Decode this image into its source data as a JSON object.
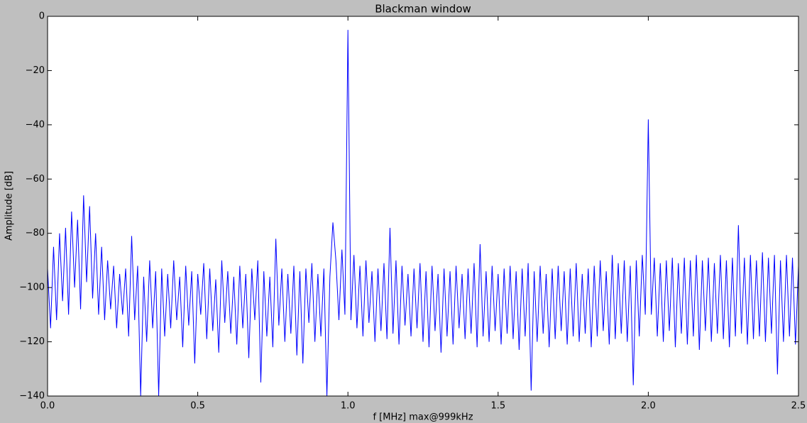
{
  "chart_data": {
    "type": "line",
    "title": "Blackman window",
    "x_label": "f [MHz] max@999kHz",
    "y_label": "Amplitude [dB]",
    "color": "#0000ff",
    "xlim": [
      0,
      2.5
    ],
    "ylim": [
      -140,
      0
    ],
    "xticks": [
      {
        "value": 0,
        "label": "0.0"
      },
      0.5,
      {
        "value": 1,
        "label": "1.0"
      },
      1.5,
      {
        "value": 2,
        "label": "2.0"
      },
      2.5
    ],
    "yticks": [
      {
        "value": 0,
        "label": "0"
      },
      {
        "value": -20,
        "label": "−20"
      },
      {
        "value": -40,
        "label": "−40"
      },
      {
        "value": -60,
        "label": "−60"
      },
      {
        "value": -80,
        "label": "−80"
      },
      {
        "value": -100,
        "label": "−100"
      },
      {
        "value": -120,
        "label": "−120"
      },
      {
        "value": -140,
        "label": "−140"
      }
    ],
    "x": [
      0,
      0.01,
      0.02,
      0.03,
      0.04,
      0.05,
      0.06,
      0.07,
      0.08,
      0.09,
      0.1,
      0.11,
      0.12,
      0.13,
      0.14,
      0.15,
      0.16,
      0.17,
      0.18,
      0.19,
      0.2,
      0.21,
      0.22,
      0.23,
      0.24,
      0.25,
      0.26,
      0.27,
      0.28,
      0.29,
      0.3,
      0.31,
      0.32,
      0.33,
      0.34,
      0.35,
      0.36,
      0.37,
      0.38,
      0.39,
      0.4,
      0.41,
      0.42,
      0.43,
      0.44,
      0.45,
      0.46,
      0.47,
      0.48,
      0.49,
      0.5,
      0.51,
      0.52,
      0.53,
      0.54,
      0.55,
      0.56,
      0.57,
      0.58,
      0.59,
      0.6,
      0.61,
      0.62,
      0.63,
      0.64,
      0.65,
      0.66,
      0.67,
      0.68,
      0.69,
      0.7,
      0.71,
      0.72,
      0.73,
      0.74,
      0.75,
      0.76,
      0.77,
      0.78,
      0.79,
      0.8,
      0.81,
      0.82,
      0.83,
      0.84,
      0.85,
      0.86,
      0.87,
      0.88,
      0.89,
      0.9,
      0.91,
      0.92,
      0.93,
      0.94,
      0.95,
      0.96,
      0.97,
      0.98,
      0.99,
      1,
      1.01,
      1.02,
      1.03,
      1.04,
      1.05,
      1.06,
      1.07,
      1.08,
      1.09,
      1.1,
      1.11,
      1.12,
      1.13,
      1.14,
      1.15,
      1.16,
      1.17,
      1.18,
      1.19,
      1.2,
      1.21,
      1.22,
      1.23,
      1.24,
      1.25,
      1.26,
      1.27,
      1.28,
      1.29,
      1.3,
      1.31,
      1.32,
      1.33,
      1.34,
      1.35,
      1.36,
      1.37,
      1.38,
      1.39,
      1.4,
      1.41,
      1.42,
      1.43,
      1.44,
      1.45,
      1.46,
      1.47,
      1.48,
      1.49,
      1.5,
      1.51,
      1.52,
      1.53,
      1.54,
      1.55,
      1.56,
      1.57,
      1.58,
      1.59,
      1.6,
      1.61,
      1.62,
      1.63,
      1.64,
      1.65,
      1.66,
      1.67,
      1.68,
      1.69,
      1.7,
      1.71,
      1.72,
      1.73,
      1.74,
      1.75,
      1.76,
      1.77,
      1.78,
      1.79,
      1.8,
      1.81,
      1.82,
      1.83,
      1.84,
      1.85,
      1.86,
      1.87,
      1.88,
      1.89,
      1.9,
      1.91,
      1.92,
      1.93,
      1.94,
      1.95,
      1.96,
      1.97,
      1.98,
      1.99,
      2,
      2.01,
      2.02,
      2.03,
      2.04,
      2.05,
      2.06,
      2.07,
      2.08,
      2.09,
      2.1,
      2.11,
      2.12,
      2.13,
      2.14,
      2.15,
      2.16,
      2.17,
      2.18,
      2.19,
      2.2,
      2.21,
      2.22,
      2.23,
      2.24,
      2.25,
      2.26,
      2.27,
      2.28,
      2.29,
      2.3,
      2.31,
      2.32,
      2.33,
      2.34,
      2.35,
      2.36,
      2.37,
      2.38,
      2.39,
      2.4,
      2.41,
      2.42,
      2.43,
      2.44,
      2.45,
      2.46,
      2.47,
      2.48,
      2.49,
      2.5
    ],
    "values": [
      -93,
      -115,
      -85,
      -112,
      -80,
      -105,
      -78,
      -110,
      -72,
      -100,
      -75,
      -108,
      -66,
      -98,
      -70,
      -104,
      -80,
      -110,
      -85,
      -112,
      -90,
      -108,
      -92,
      -115,
      -95,
      -110,
      -93,
      -118,
      -81,
      -112,
      -92,
      -140,
      -96,
      -120,
      -90,
      -115,
      -94,
      -140,
      -93,
      -118,
      -95,
      -115,
      -90,
      -112,
      -96,
      -122,
      -92,
      -114,
      -94,
      -128,
      -95,
      -110,
      -91,
      -119,
      -93,
      -116,
      -97,
      -124,
      -90,
      -113,
      -94,
      -117,
      -96,
      -121,
      -92,
      -115,
      -95,
      -126,
      -93,
      -112,
      -90,
      -135,
      -94,
      -118,
      -96,
      -122,
      -82,
      -114,
      -93,
      -120,
      -95,
      -117,
      -92,
      -125,
      -94,
      -128,
      -93,
      -113,
      -91,
      -120,
      -95,
      -118,
      -93,
      -140,
      -96,
      -76,
      -90,
      -112,
      -86,
      -110,
      -5,
      -112,
      -88,
      -115,
      -92,
      -118,
      -90,
      -113,
      -94,
      -120,
      -93,
      -116,
      -91,
      -119,
      -78,
      -117,
      -90,
      -121,
      -92,
      -114,
      -95,
      -118,
      -93,
      -115,
      -91,
      -120,
      -94,
      -122,
      -92,
      -116,
      -95,
      -124,
      -93,
      -118,
      -94,
      -121,
      -92,
      -115,
      -95,
      -119,
      -93,
      -117,
      -91,
      -122,
      -84,
      -118,
      -94,
      -120,
      -92,
      -116,
      -95,
      -121,
      -93,
      -117,
      -92,
      -119,
      -94,
      -123,
      -93,
      -118,
      -91,
      -138,
      -94,
      -120,
      -92,
      -117,
      -95,
      -122,
      -93,
      -119,
      -92,
      -116,
      -94,
      -121,
      -93,
      -118,
      -91,
      -120,
      -95,
      -117,
      -93,
      -122,
      -92,
      -118,
      -90,
      -116,
      -94,
      -121,
      -88,
      -119,
      -91,
      -117,
      -90,
      -120,
      -92,
      -136,
      -90,
      -118,
      -88,
      -110,
      -38,
      -110,
      -89,
      -118,
      -91,
      -120,
      -90,
      -116,
      -89,
      -122,
      -91,
      -117,
      -89,
      -121,
      -90,
      -118,
      -88,
      -123,
      -90,
      -116,
      -89,
      -120,
      -91,
      -117,
      -88,
      -119,
      -90,
      -122,
      -89,
      -118,
      -77,
      -117,
      -89,
      -121,
      -88,
      -119,
      -90,
      -118,
      -87,
      -120,
      -89,
      -117,
      -88,
      -132,
      -90,
      -120,
      -88,
      -118,
      -89,
      -121,
      -92
    ]
  }
}
